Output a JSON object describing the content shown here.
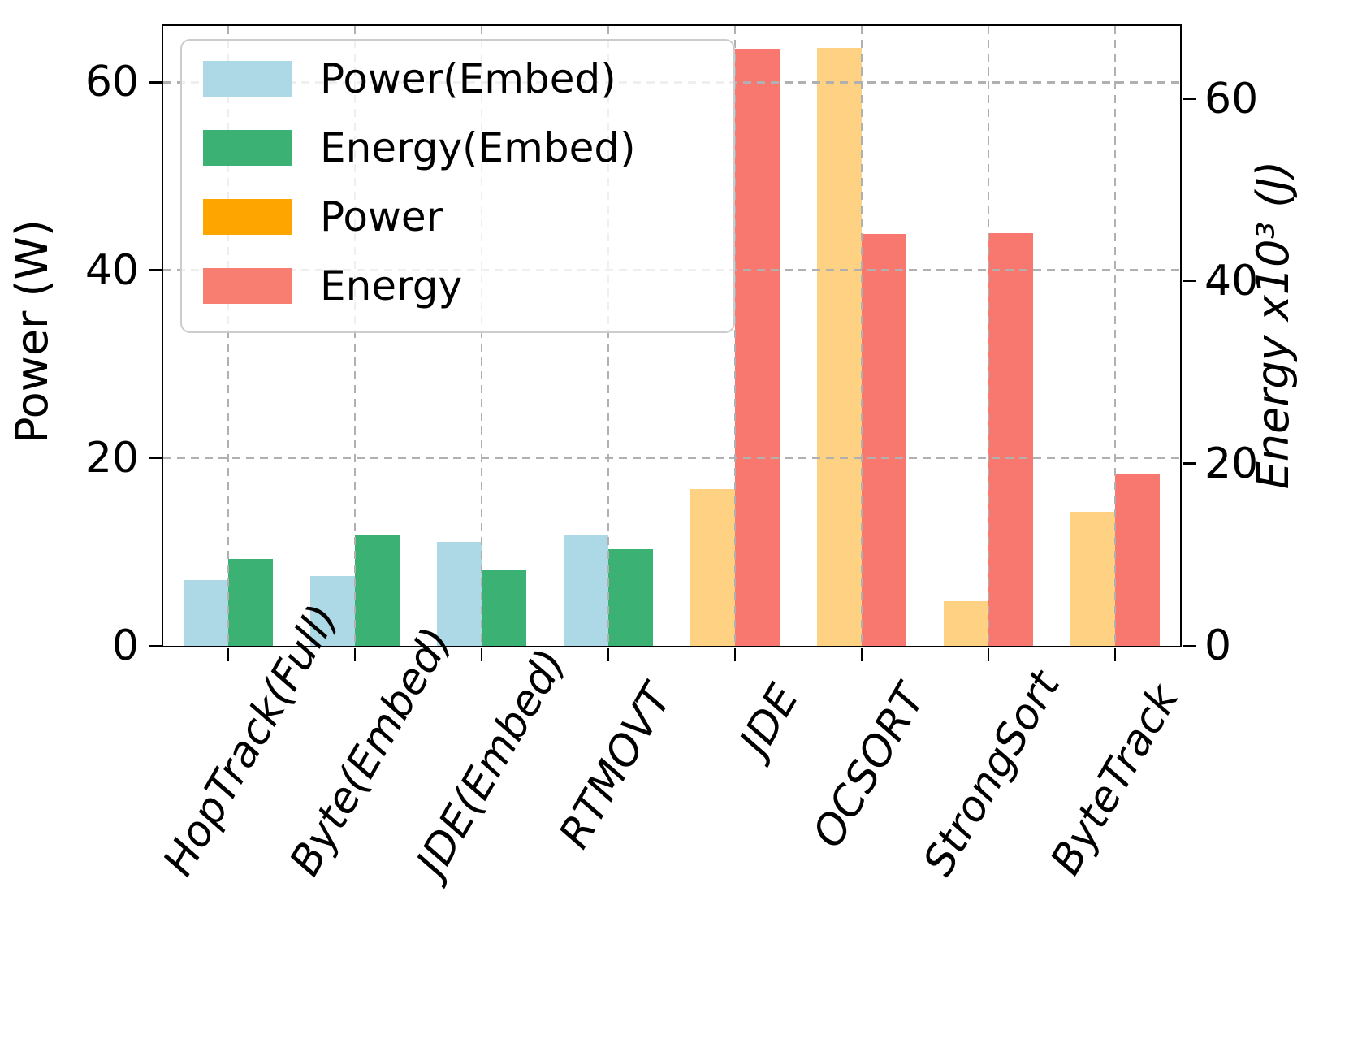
{
  "chart_data": {
    "type": "bar",
    "categories": [
      "HopTrack(Full)",
      "Byte(Embed)",
      "JDE(Embed)",
      "RTMOVT",
      "JDE",
      "OCSORT",
      "StrongSort",
      "ByteTrack"
    ],
    "series": [
      {
        "name": "Power(Embed)",
        "axis": "left",
        "bar_color": "#ADD8E6",
        "legend_color": "#ADD8E6",
        "values": [
          7.0,
          7.4,
          11.1,
          11.8,
          null,
          null,
          null,
          null
        ]
      },
      {
        "name": "Energy(Embed)",
        "axis": "right",
        "bar_color": "#3BB273",
        "legend_color": "#3BB273",
        "values": [
          9.5,
          12.1,
          8.3,
          10.6,
          null,
          null,
          null,
          null
        ]
      },
      {
        "name": "Power",
        "axis": "left",
        "bar_color": "#FFD183",
        "legend_color": "#FFA500",
        "values": [
          null,
          null,
          null,
          null,
          16.7,
          63.7,
          4.8,
          14.3
        ]
      },
      {
        "name": "Energy",
        "axis": "right",
        "bar_color": "#F8786F",
        "legend_color": "#F87E71",
        "values": [
          null,
          null,
          null,
          null,
          65.5,
          45.2,
          45.3,
          18.8
        ]
      }
    ],
    "left_axis": {
      "label": "Power (W)",
      "ticks": [
        0,
        20,
        40,
        60
      ],
      "max": 66
    },
    "right_axis": {
      "label": "Energy x10³ (J)",
      "ticks": [
        0,
        20,
        40,
        60
      ],
      "max": 68
    },
    "grid": true,
    "legend_position": "upper left",
    "grid_color": "#b0b0b0"
  }
}
